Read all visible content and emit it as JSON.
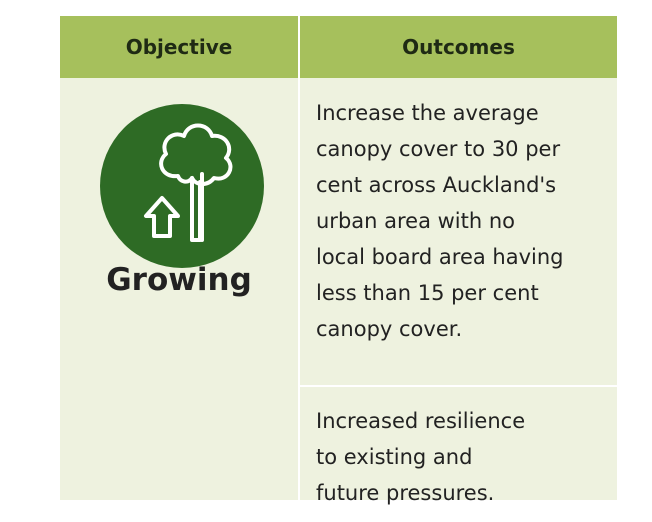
{
  "table": {
    "headers": [
      "Objective",
      "Outcomes"
    ],
    "objective": "Growing",
    "outcomes": [
      "Increase the average\ncanopy cover to 30 per\ncent across Auckland's\nurban area with no\nlocal board area having\nless than 15 per cent\ncanopy cover.",
      "Increased resilience\nto existing and\nfuture pressures."
    ]
  }
}
